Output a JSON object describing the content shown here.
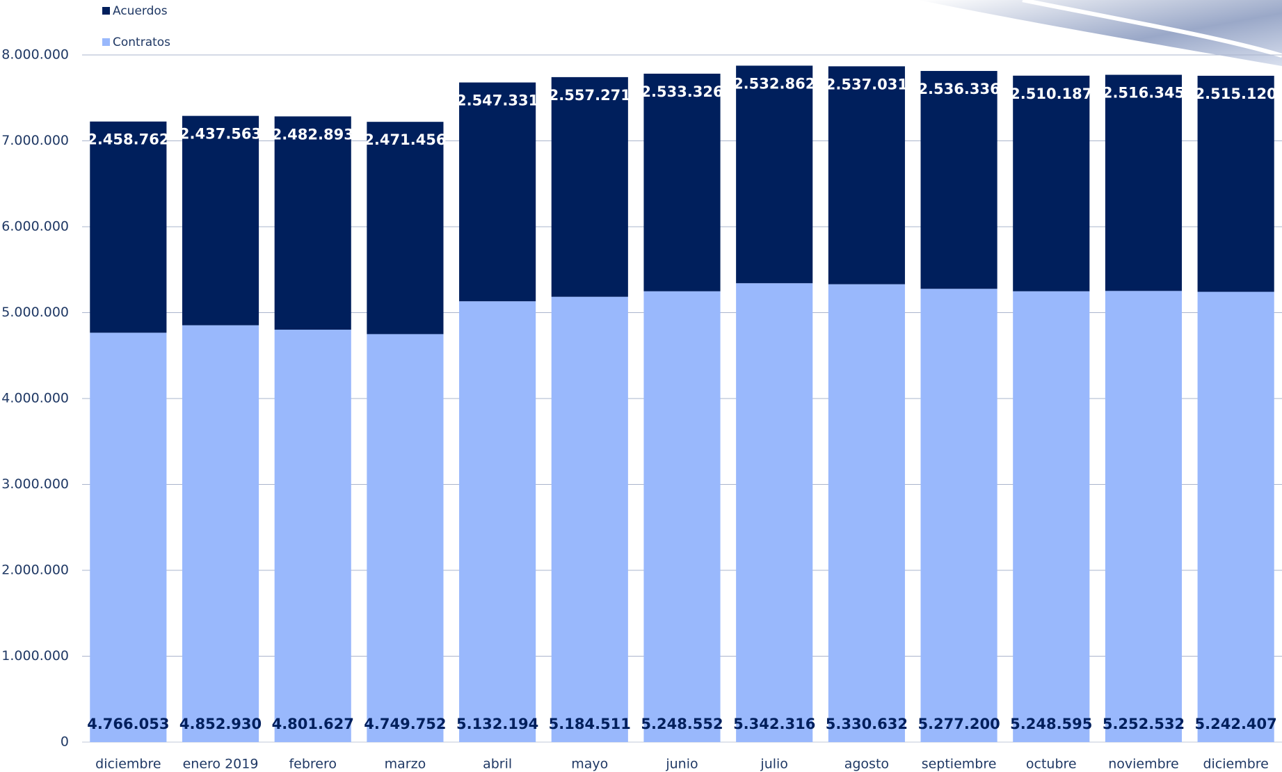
{
  "chart_data": {
    "type": "stacked-bar",
    "categories": [
      "diciembre",
      "enero 2019",
      "febrero",
      "marzo",
      "abril",
      "mayo",
      "junio",
      "julio",
      "agosto",
      "septiembre",
      "octubre",
      "noviembre",
      "diciembre"
    ],
    "series": [
      {
        "name": "Contratos",
        "color": "#99b8fc",
        "values": [
          4766053,
          4852930,
          4801627,
          4749752,
          5132194,
          5184511,
          5248552,
          5342316,
          5330632,
          5277200,
          5248595,
          5252532,
          5242407
        ],
        "value_labels": [
          "4.766.053",
          "4.852.930",
          "4.801.627",
          "4.749.752",
          "5.132.194",
          "5.184.511",
          "5.248.552",
          "5.342.316",
          "5.330.632",
          "5.277.200",
          "5.248.595",
          "5.252.532",
          "5.242.407"
        ]
      },
      {
        "name": "Acuerdos",
        "color": "#001f5c",
        "values": [
          2458762,
          2437563,
          2482893,
          2471456,
          2547331,
          2557271,
          2533326,
          2532862,
          2537031,
          2536336,
          2510187,
          2516345,
          2515120
        ],
        "value_labels": [
          "2.458.762",
          "2.437.563",
          "2.482.893",
          "2.471.456",
          "2.547.331",
          "2.557.271",
          "2.533.326",
          "2.532.862",
          "2.537.031",
          "2.536.336",
          "2.510.187",
          "2.516.345",
          "2.515.120"
        ]
      }
    ],
    "ylim": [
      0,
      8000000
    ],
    "yticks": [
      0,
      {
        "value": 1000000,
        "label": "1.000.000"
      },
      {
        "value": 2000000,
        "label": "2.000.000"
      },
      {
        "value": 3000000,
        "label": "3.000.000"
      },
      {
        "value": 4000000,
        "label": "4.000.000"
      },
      {
        "value": 5000000,
        "label": "5.000.000"
      },
      {
        "value": 6000000,
        "label": "6.000.000"
      },
      {
        "value": 7000000,
        "label": "7.000.000"
      },
      {
        "value": 8000000,
        "label": "8.000.000"
      }
    ],
    "grid": true
  }
}
